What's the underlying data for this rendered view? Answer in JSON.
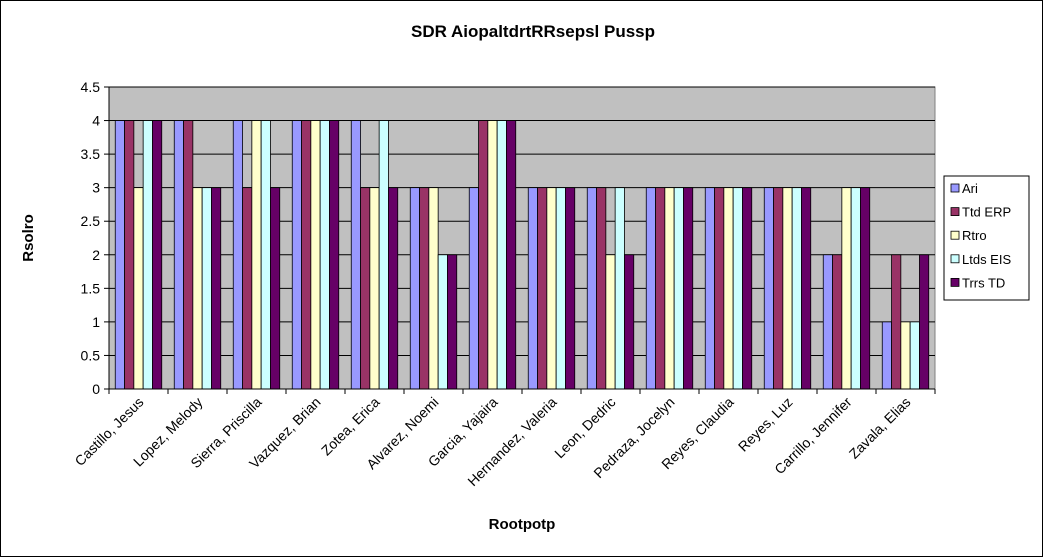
{
  "chart_data": {
    "type": "bar",
    "title": "SDR AiopaltdrtRRsepsl Pussp",
    "xlabel": "Rootpotp",
    "ylabel": "Rsolro",
    "ylim": [
      0,
      4.5
    ],
    "ytick_step": 0.5,
    "yticks": [
      "0",
      "0.5",
      "1",
      "1.5",
      "2",
      "2.5",
      "3",
      "3.5",
      "4",
      "4.5"
    ],
    "grid": true,
    "legend_position": "right",
    "plot_background": "#c0c0c0",
    "categories": [
      "Castillo, Jesus",
      "Lopez, Melody",
      "Sierra, Priscilla",
      "Vazquez, Brian",
      "Zotea, Erica",
      "Alvarez, Noemi",
      "Garcia, Yajaira",
      "Hernandez, Valeria",
      "Leon, Dedric",
      "Pedraza, Jocelyn",
      "Reyes, Claudia",
      "Reyes, Luz",
      "Carrillo, Jennifer",
      "Zavala, Elias"
    ],
    "series": [
      {
        "name": "Ari",
        "color": "#9999ff",
        "values": [
          4,
          4,
          4,
          4,
          4,
          3,
          3,
          3,
          3,
          3,
          3,
          3,
          2,
          1
        ]
      },
      {
        "name": "Ttd ERP",
        "color": "#993366",
        "values": [
          4,
          4,
          3,
          4,
          3,
          3,
          4,
          3,
          3,
          3,
          3,
          3,
          2,
          2
        ]
      },
      {
        "name": "Rtro",
        "color": "#ffffcc",
        "values": [
          3,
          3,
          4,
          4,
          3,
          3,
          4,
          3,
          2,
          3,
          3,
          3,
          3,
          1
        ]
      },
      {
        "name": "Ltds EIS",
        "color": "#ccffff",
        "values": [
          4,
          3,
          4,
          4,
          4,
          2,
          4,
          3,
          3,
          3,
          3,
          3,
          3,
          1
        ]
      },
      {
        "name": "Trrs TD",
        "color": "#660066",
        "values": [
          4,
          3,
          3,
          4,
          3,
          2,
          4,
          3,
          2,
          3,
          3,
          3,
          3,
          2
        ]
      }
    ]
  }
}
